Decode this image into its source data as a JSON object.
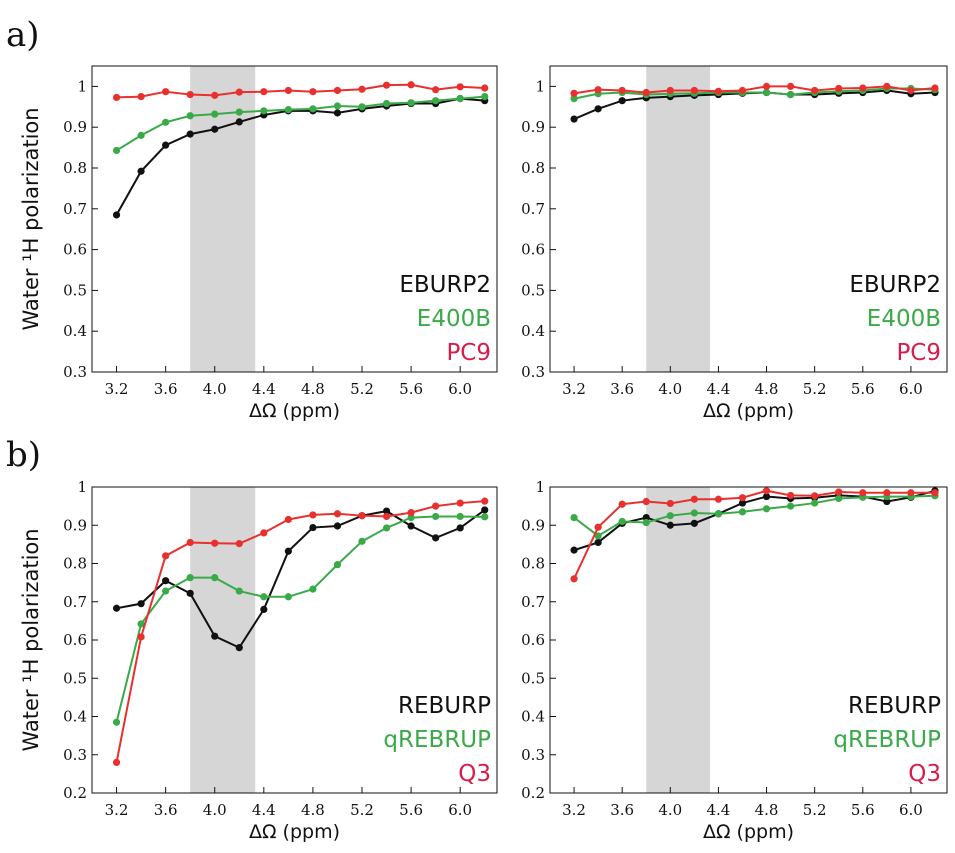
{
  "panel_labels": [
    "a)",
    "b)"
  ],
  "colors": {
    "black": "#111111",
    "green": "#3aaa48",
    "red": "#e8302e",
    "legend_red": "#d81c4a",
    "band": "#d6d6d6"
  },
  "chart_data": [
    {
      "id": "a-left",
      "panel": "a)",
      "type": "line",
      "xlabel": "ΔΩ (ppm)",
      "ylabel": "Water ¹H polarization",
      "xlim": [
        3.0,
        6.3
      ],
      "ylim": [
        0.3,
        1.05
      ],
      "xticks": [
        3.2,
        3.6,
        4.0,
        4.4,
        4.8,
        5.2,
        5.6,
        6.0
      ],
      "yticks": [
        0.3,
        0.4,
        0.5,
        0.6,
        0.7,
        0.8,
        0.9,
        1
      ],
      "ytick_labels": [
        "0.3",
        "0.4",
        "0.5",
        "0.6",
        "0.7",
        "0.8",
        "0.9",
        "1"
      ],
      "shaded_region": [
        3.8,
        4.33
      ],
      "legend_position": "bottom-right",
      "grid": false,
      "x": [
        3.2,
        3.4,
        3.6,
        3.8,
        4.0,
        4.2,
        4.4,
        4.6,
        4.8,
        5.0,
        5.2,
        5.4,
        5.6,
        5.8,
        6.0,
        6.2
      ],
      "series": [
        {
          "name": "EBURP2",
          "color": "#111111",
          "values": [
            0.685,
            0.792,
            0.856,
            0.883,
            0.895,
            0.913,
            0.93,
            0.94,
            0.94,
            0.935,
            0.945,
            0.952,
            0.958,
            0.958,
            0.97,
            0.965
          ]
        },
        {
          "name": "E400B",
          "color": "#3aaa48",
          "values": [
            0.843,
            0.88,
            0.912,
            0.928,
            0.932,
            0.937,
            0.94,
            0.943,
            0.945,
            0.952,
            0.95,
            0.958,
            0.96,
            0.965,
            0.97,
            0.975
          ]
        },
        {
          "name": "PC9",
          "color": "#e8302e",
          "values": [
            0.973,
            0.975,
            0.987,
            0.98,
            0.978,
            0.986,
            0.987,
            0.99,
            0.987,
            0.99,
            0.993,
            1.003,
            1.004,
            0.992,
            0.999,
            0.996
          ]
        }
      ]
    },
    {
      "id": "a-right",
      "panel": "a)",
      "type": "line",
      "xlabel": "ΔΩ (ppm)",
      "xlim": [
        3.0,
        6.3
      ],
      "ylim": [
        0.3,
        1.05
      ],
      "xticks": [
        3.2,
        3.6,
        4.0,
        4.4,
        4.8,
        5.2,
        5.6,
        6.0
      ],
      "yticks": [
        0.3,
        0.4,
        0.5,
        0.6,
        0.7,
        0.8,
        0.9,
        1
      ],
      "ytick_labels": [
        "0.3",
        "0.4",
        "0.5",
        "0.6",
        "0.7",
        "0.8",
        "0.9",
        "1"
      ],
      "shaded_region": [
        3.8,
        4.33
      ],
      "legend_position": "bottom-right",
      "grid": false,
      "x": [
        3.2,
        3.4,
        3.6,
        3.8,
        4.0,
        4.2,
        4.4,
        4.6,
        4.8,
        5.0,
        5.2,
        5.4,
        5.6,
        5.8,
        6.0,
        6.2
      ],
      "series": [
        {
          "name": "EBURP2",
          "color": "#111111",
          "values": [
            0.92,
            0.945,
            0.965,
            0.972,
            0.975,
            0.978,
            0.98,
            0.983,
            0.985,
            0.98,
            0.98,
            0.983,
            0.985,
            0.99,
            0.982,
            0.985
          ]
        },
        {
          "name": "E400B",
          "color": "#3aaa48",
          "values": [
            0.97,
            0.982,
            0.985,
            0.98,
            0.982,
            0.983,
            0.985,
            0.985,
            0.985,
            0.98,
            0.985,
            0.988,
            0.99,
            0.995,
            0.995,
            0.992
          ]
        },
        {
          "name": "PC9",
          "color": "#e8302e",
          "values": [
            0.983,
            0.992,
            0.99,
            0.985,
            0.99,
            0.99,
            0.988,
            0.99,
            1.0,
            1.0,
            0.99,
            0.995,
            0.996,
            1.0,
            0.99,
            0.996
          ]
        }
      ]
    },
    {
      "id": "b-left",
      "panel": "b)",
      "type": "line",
      "xlabel": "ΔΩ (ppm)",
      "ylabel": "Water ¹H polarization",
      "xlim": [
        3.0,
        6.3
      ],
      "ylim": [
        0.2,
        1.0
      ],
      "xticks": [
        3.2,
        3.6,
        4.0,
        4.4,
        4.8,
        5.2,
        5.6,
        6.0
      ],
      "yticks": [
        0.2,
        0.3,
        0.4,
        0.5,
        0.6,
        0.7,
        0.8,
        0.9,
        1
      ],
      "ytick_labels": [
        "0.2",
        "0.3",
        "0.4",
        "0.5",
        "0.6",
        "0.7",
        "0.8",
        "0.9",
        "1"
      ],
      "shaded_region": [
        3.8,
        4.33
      ],
      "legend_position": "bottom-right",
      "grid": false,
      "x": [
        3.2,
        3.4,
        3.6,
        3.8,
        4.0,
        4.2,
        4.4,
        4.6,
        4.8,
        5.0,
        5.2,
        5.4,
        5.6,
        5.8,
        6.0,
        6.2
      ],
      "series": [
        {
          "name": "REBURP",
          "color": "#111111",
          "values": [
            0.683,
            0.695,
            0.755,
            0.722,
            0.61,
            0.58,
            0.68,
            0.832,
            0.894,
            0.898,
            0.925,
            0.937,
            0.898,
            0.867,
            0.893,
            0.94
          ]
        },
        {
          "name": "qREBRUP",
          "color": "#3aaa48",
          "values": [
            0.385,
            0.642,
            0.728,
            0.763,
            0.763,
            0.728,
            0.713,
            0.713,
            0.733,
            0.797,
            0.858,
            0.893,
            0.92,
            0.923,
            0.923,
            0.922
          ]
        },
        {
          "name": "Q3",
          "color": "#e8302e",
          "values": [
            0.28,
            0.608,
            0.82,
            0.855,
            0.853,
            0.852,
            0.88,
            0.915,
            0.927,
            0.93,
            0.925,
            0.923,
            0.933,
            0.95,
            0.958,
            0.963
          ]
        }
      ]
    },
    {
      "id": "b-right",
      "panel": "b)",
      "type": "line",
      "xlabel": "ΔΩ (ppm)",
      "xlim": [
        3.0,
        6.3
      ],
      "ylim": [
        0.2,
        1.0
      ],
      "xticks": [
        3.2,
        3.6,
        4.0,
        4.4,
        4.8,
        5.2,
        5.6,
        6.0
      ],
      "yticks": [
        0.2,
        0.3,
        0.4,
        0.5,
        0.6,
        0.7,
        0.8,
        0.9,
        1
      ],
      "ytick_labels": [
        "0.2",
        "0.3",
        "0.4",
        "0.5",
        "0.6",
        "0.7",
        "0.8",
        "0.9",
        "1"
      ],
      "shaded_region": [
        3.8,
        4.33
      ],
      "legend_position": "bottom-right",
      "grid": false,
      "x": [
        3.2,
        3.4,
        3.6,
        3.8,
        4.0,
        4.2,
        4.4,
        4.6,
        4.8,
        5.0,
        5.2,
        5.4,
        5.6,
        5.8,
        6.0,
        6.2
      ],
      "series": [
        {
          "name": "REBURP",
          "color": "#111111",
          "values": [
            0.835,
            0.855,
            0.905,
            0.92,
            0.9,
            0.905,
            0.93,
            0.958,
            0.975,
            0.97,
            0.972,
            0.978,
            0.975,
            0.962,
            0.973,
            0.99
          ]
        },
        {
          "name": "qREBRUP",
          "color": "#3aaa48",
          "values": [
            0.92,
            0.872,
            0.91,
            0.907,
            0.925,
            0.932,
            0.93,
            0.935,
            0.943,
            0.95,
            0.958,
            0.97,
            0.973,
            0.975,
            0.975,
            0.977
          ]
        },
        {
          "name": "Q3",
          "color": "#e8302e",
          "values": [
            0.76,
            0.895,
            0.955,
            0.962,
            0.957,
            0.968,
            0.968,
            0.972,
            0.99,
            0.978,
            0.977,
            0.987,
            0.985,
            0.985,
            0.985,
            0.985
          ]
        }
      ]
    }
  ]
}
